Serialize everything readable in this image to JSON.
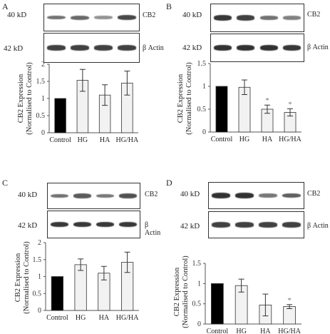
{
  "panels": [
    {
      "letter": "A",
      "blot_top": {
        "mw": "40 kD",
        "label": "CB2",
        "band_intensity": [
          0.55,
          0.6,
          0.35,
          0.8
        ]
      },
      "blot_bottom": {
        "mw": "42 kD",
        "label": "β Actin",
        "band_intensity": [
          0.85,
          0.85,
          0.85,
          0.85
        ]
      }
    },
    {
      "letter": "B",
      "blot_top": {
        "mw": "40 kD",
        "label": "CB2",
        "band_intensity": [
          0.9,
          0.85,
          0.55,
          0.45
        ]
      },
      "blot_bottom": {
        "mw": "42 kD",
        "label": "β Actin",
        "band_intensity": [
          0.95,
          0.95,
          0.95,
          0.9
        ]
      }
    },
    {
      "letter": "C",
      "blot_top": {
        "mw": "40 kD",
        "label": "CB2",
        "band_intensity": [
          0.55,
          0.7,
          0.5,
          0.75
        ]
      },
      "blot_bottom": {
        "mw": "42 kD",
        "label": "β Actin",
        "band_intensity": [
          0.9,
          0.9,
          0.9,
          0.9
        ]
      }
    },
    {
      "letter": "D",
      "blot_top": {
        "mw": "40 kD",
        "label": "CB2",
        "band_intensity": [
          0.95,
          0.95,
          0.5,
          0.65
        ]
      },
      "blot_bottom": {
        "mw": "42 kD",
        "label": "β Actin",
        "band_intensity": [
          0.85,
          0.85,
          0.85,
          0.85
        ]
      }
    }
  ],
  "colors": {
    "control_bar": "#000000",
    "treatment_bar": "#f2f2f2",
    "bar_stroke": "#333333"
  },
  "chart_data": [
    {
      "type": "bar",
      "categories": [
        "Control",
        "HG",
        "HA",
        "HG/HA"
      ],
      "values": [
        1.0,
        1.53,
        1.1,
        1.45
      ],
      "errors": [
        0,
        0.32,
        0.3,
        0.35
      ],
      "significance": [
        "",
        "",
        "",
        ""
      ],
      "ylabel": "CB2 Expression (Normalised to Control)",
      "ylabel_lines": [
        "CB2 Expression",
        "(Normalised to Control)"
      ],
      "ylim": [
        0,
        2
      ],
      "yticks": [
        "0",
        "0.5",
        "1",
        "1.5",
        "2"
      ],
      "grid": false
    },
    {
      "type": "bar",
      "categories": [
        "Control",
        "HG",
        "HA",
        "HG/HA"
      ],
      "values": [
        1.0,
        0.98,
        0.5,
        0.43
      ],
      "errors": [
        0,
        0.16,
        0.09,
        0.08
      ],
      "significance": [
        "",
        "",
        "*",
        "*"
      ],
      "ylabel": "CB2 Expression (Normalised to Control)",
      "ylabel_lines": [
        "CB2 Expression",
        "(Normalised to Control)"
      ],
      "ylim": [
        0,
        1.5
      ],
      "yticks": [
        "0",
        "0.5",
        "1",
        "1.5"
      ],
      "grid": false
    },
    {
      "type": "bar",
      "categories": [
        "Control",
        "HG",
        "HA",
        "HG/HA"
      ],
      "values": [
        1.0,
        1.35,
        1.1,
        1.42
      ],
      "errors": [
        0,
        0.17,
        0.2,
        0.3
      ],
      "significance": [
        "",
        "",
        "",
        ""
      ],
      "ylabel": "CB2 Expression (Normalised to Control)",
      "ylabel_lines": [
        "CB2 Expression",
        "(Normalised to Control)"
      ],
      "ylim": [
        0,
        2
      ],
      "yticks": [
        "0",
        "0.5",
        "1",
        "1.5",
        "2"
      ],
      "grid": false
    },
    {
      "type": "bar",
      "categories": [
        "Control",
        "HG",
        "HA",
        "HG/HA"
      ],
      "values": [
        1.0,
        0.95,
        0.47,
        0.43
      ],
      "errors": [
        0,
        0.16,
        0.27,
        0.05
      ],
      "significance": [
        "",
        "",
        "",
        "*"
      ],
      "ylabel": "CB2 Expression (Normalised to Control)",
      "ylabel_lines": [
        "CB2 Expression",
        "(Normalised to Control)"
      ],
      "ylim": [
        0,
        1.5
      ],
      "yticks": [
        "0",
        "0.5",
        "1",
        "1.5"
      ],
      "grid": false
    }
  ]
}
